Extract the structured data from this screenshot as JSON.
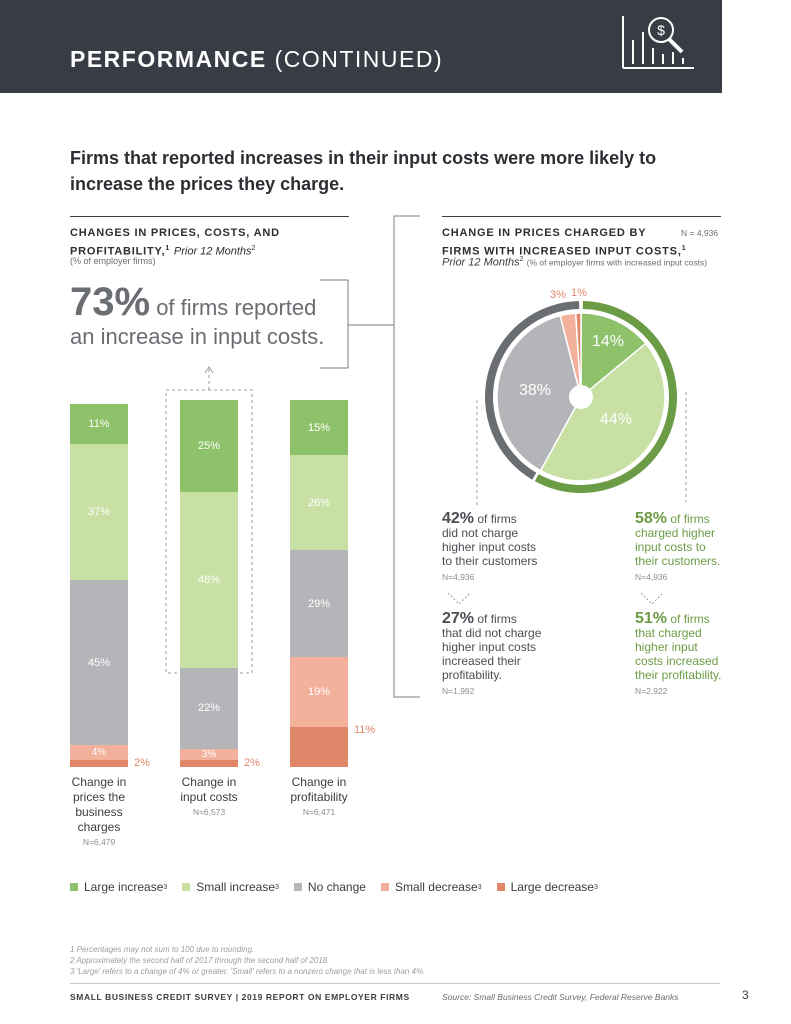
{
  "header": {
    "title_bold": "PERFORMANCE",
    "title_light": "(CONTINUED)"
  },
  "headline": "Firms that reported increases in their input costs were more likely to increase the prices they charge.",
  "left_section": {
    "title_line1": "CHANGES IN PRICES, COSTS, AND",
    "title_line2": "PROFITABILITY,",
    "title_sup": "1",
    "title_italic": "Prior 12 Months",
    "title_italic_sup": "2",
    "subtitle": "(% of employer firms)"
  },
  "callout": {
    "pct": "73%",
    "line1": "of firms reported",
    "line2": "an increase in input costs."
  },
  "colors": {
    "large_increase": "#8dc26b",
    "small_increase": "#c8e0a4",
    "no_change": "#b4b5b8",
    "small_decrease": "#f3b19c",
    "large_decrease": "#e0876a",
    "pie_outer_green": "#6b9c45",
    "pie_outer_gray": "#6a6d72"
  },
  "chart_data": [
    {
      "type": "bar",
      "stacked": true,
      "categories": [
        "Change in prices the business charges",
        "Change in input costs",
        "Change in profitability"
      ],
      "category_n": [
        "N=6,479",
        "N=6,573",
        "N=6,471"
      ],
      "series": [
        {
          "name": "Large increase",
          "values": [
            11,
            25,
            15
          ]
        },
        {
          "name": "Small increase",
          "values": [
            37,
            48,
            26
          ]
        },
        {
          "name": "No change",
          "values": [
            45,
            22,
            29
          ]
        },
        {
          "name": "Small decrease",
          "values": [
            4,
            3,
            19
          ]
        },
        {
          "name": "Large decrease",
          "values": [
            2,
            2,
            11
          ]
        }
      ],
      "value_labels": [
        [
          "11%",
          "37%",
          "45%",
          "4%",
          "2%"
        ],
        [
          "25%",
          "48%",
          "22%",
          "3%",
          "2%"
        ],
        [
          "15%",
          "26%",
          "29%",
          "19%",
          "11%"
        ]
      ]
    },
    {
      "type": "pie",
      "title": "CHANGE IN PRICES CHARGED BY FIRMS WITH INCREASED INPUT COSTS,",
      "n": "N = 4,936",
      "slices": [
        {
          "name": "Large increase",
          "value": 14,
          "label": "14%"
        },
        {
          "name": "Small increase",
          "value": 44,
          "label": "44%"
        },
        {
          "name": "No change",
          "value": 38,
          "label": "38%"
        },
        {
          "name": "Small decrease",
          "value": 3,
          "label": "3%"
        },
        {
          "name": "Large decrease",
          "value": 1,
          "label": "1%"
        }
      ]
    }
  ],
  "bar_captions": [
    {
      "lines": [
        "Change in",
        "prices the",
        "business",
        "charges"
      ],
      "n": "N=6,479"
    },
    {
      "lines": [
        "Change in",
        "input costs"
      ],
      "n": "N=6,573"
    },
    {
      "lines": [
        "Change in",
        "profitability"
      ],
      "n": "N=6,471"
    }
  ],
  "right_section": {
    "title_line1": "CHANGE IN PRICES CHARGED BY",
    "title_line2": "FIRMS WITH INCREASED INPUT COSTS,",
    "title_sup": "1",
    "n": "N = 4,936",
    "italic": "Prior 12 Months",
    "italic_sup": "2",
    "subtitle": "(% of employer firms with increased input costs)"
  },
  "stats": {
    "left_top": {
      "pct": "42%",
      "line1": "of firms",
      "rest": [
        "did not charge",
        "higher input costs",
        "to their customers"
      ],
      "n": "N=4,936"
    },
    "left_bottom": {
      "pct": "27%",
      "line1": "of firms",
      "rest": [
        "that did not charge",
        "higher input costs",
        "increased their",
        "profitability."
      ],
      "n": "N=1,992"
    },
    "right_top": {
      "pct": "58%",
      "line1": "of firms",
      "rest": [
        "charged higher",
        "input costs to",
        "their customers."
      ],
      "n": "N=4,936"
    },
    "right_bottom": {
      "pct": "51%",
      "line1": "of firms",
      "rest": [
        "that charged",
        "higher input",
        "costs increased",
        "their profitability."
      ],
      "n": "N=2,922"
    }
  },
  "legend": [
    {
      "label": "Large increase",
      "sup": "3",
      "color": "#8dc26b"
    },
    {
      "label": "Small increase",
      "sup": "3",
      "color": "#c8e0a4"
    },
    {
      "label": "No change",
      "sup": "",
      "color": "#b4b5b8"
    },
    {
      "label": "Small decrease",
      "sup": "3",
      "color": "#f3b19c"
    },
    {
      "label": "Large decrease",
      "sup": "3",
      "color": "#e0876a"
    }
  ],
  "footnotes": [
    "1   Percentages may not sum to 100 due to rounding.",
    "2   Approximately the second half of 2017 through the second half of 2018.",
    "3   'Large' refers to a change of 4% or greater. 'Small' refers to a nonzero change that is less than 4%."
  ],
  "footer": {
    "left": "SMALL BUSINESS CREDIT SURVEY  |  2019 REPORT ON EMPLOYER FIRMS",
    "source": "Source: Small Business Credit Survey, Federal Reserve Banks",
    "page": "3"
  }
}
